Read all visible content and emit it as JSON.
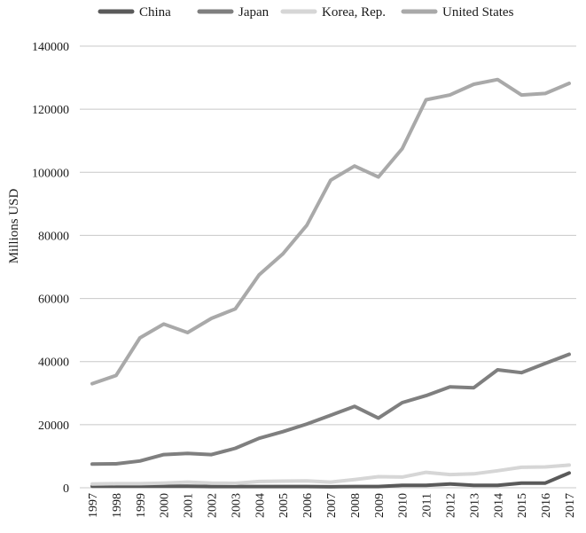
{
  "chart_data": {
    "type": "line",
    "title": "",
    "xlabel": "",
    "ylabel": "Millions USD",
    "ylim": [
      0,
      140000
    ],
    "yticks": [
      0,
      20000,
      40000,
      60000,
      80000,
      100000,
      120000,
      140000
    ],
    "grid": "horizontal",
    "legend_position": "top",
    "categories": [
      "1997",
      "1998",
      "1999",
      "2000",
      "2001",
      "2002",
      "2003",
      "2004",
      "2005",
      "2006",
      "2007",
      "2008",
      "2009",
      "2010",
      "2011",
      "2012",
      "2013",
      "2014",
      "2015",
      "2016",
      "2017"
    ],
    "series": [
      {
        "name": "China",
        "color": "#5a5a5a",
        "values": [
          500,
          500,
          500,
          500,
          500,
          400,
          400,
          400,
          400,
          400,
          300,
          400,
          400,
          800,
          800,
          1200,
          800,
          800,
          1500,
          1500,
          4700
        ]
      },
      {
        "name": "Japan",
        "color": "#7f7f7f",
        "values": [
          7500,
          7600,
          8500,
          10500,
          10900,
          10500,
          12500,
          15700,
          17800,
          20200,
          23000,
          25800,
          22100,
          27000,
          29200,
          32000,
          31700,
          37400,
          36500,
          39400,
          42300
        ]
      },
      {
        "name": "Korea, Rep.",
        "color": "#d6d6d6",
        "values": [
          1200,
          1300,
          1300,
          1500,
          1800,
          1500,
          1400,
          2000,
          2100,
          2200,
          1800,
          2600,
          3500,
          3400,
          4900,
          4200,
          4400,
          5400,
          6500,
          6600,
          7200
        ]
      },
      {
        "name": "United States",
        "color": "#a9a9a9",
        "values": [
          33000,
          35600,
          47500,
          51900,
          49200,
          53700,
          56700,
          67500,
          74200,
          83200,
          97500,
          102000,
          98500,
          107500,
          123000,
          124500,
          127900,
          129400,
          124500,
          125000,
          128200
        ]
      }
    ]
  }
}
